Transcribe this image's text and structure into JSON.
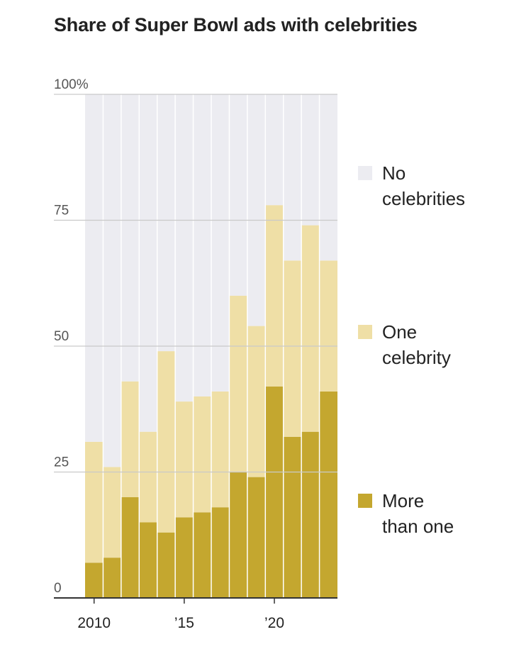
{
  "title": "Share of Super Bowl ads with celebrities",
  "colors": {
    "none": "#ececf1",
    "one": "#efdfa6",
    "more": "#c4a72f",
    "grid": "#c9c9c9",
    "divider": "#ffffff",
    "axis": "#333333",
    "text": "#222222",
    "tick_text": "#555555"
  },
  "legend": [
    {
      "key": "none",
      "lines": [
        "No",
        "celebrities"
      ]
    },
    {
      "key": "one",
      "lines": [
        "One",
        "celebrity"
      ]
    },
    {
      "key": "more",
      "lines": [
        "More",
        "than one"
      ]
    }
  ],
  "chart_data": {
    "type": "bar",
    "stacked": true,
    "title": "Share of Super Bowl ads with celebrities",
    "x": [
      2010,
      2011,
      2012,
      2013,
      2014,
      2015,
      2016,
      2017,
      2018,
      2019,
      2020,
      2021,
      2022,
      2023
    ],
    "x_tick_values": [
      2010,
      2015,
      2020
    ],
    "x_tick_labels": [
      "2010",
      "’15",
      "’20"
    ],
    "y_tick_values": [
      0,
      25,
      50,
      75,
      100
    ],
    "y_tick_labels": [
      "0",
      "25",
      "50",
      "75",
      "100%"
    ],
    "ylim": [
      0,
      100
    ],
    "grid": true,
    "legend_position": "right",
    "series": [
      {
        "name": "More than one",
        "key": "more",
        "values": [
          7,
          8,
          20,
          15,
          13,
          16,
          17,
          18,
          25,
          24,
          42,
          32,
          33,
          41
        ]
      },
      {
        "name": "One celebrity",
        "key": "one",
        "values": [
          24,
          18,
          23,
          18,
          36,
          23,
          23,
          23,
          35,
          30,
          36,
          35,
          41,
          26
        ]
      },
      {
        "name": "No celebrities",
        "key": "none",
        "values": [
          69,
          74,
          57,
          67,
          51,
          61,
          60,
          59,
          40,
          46,
          22,
          33,
          26,
          33
        ]
      }
    ]
  }
}
